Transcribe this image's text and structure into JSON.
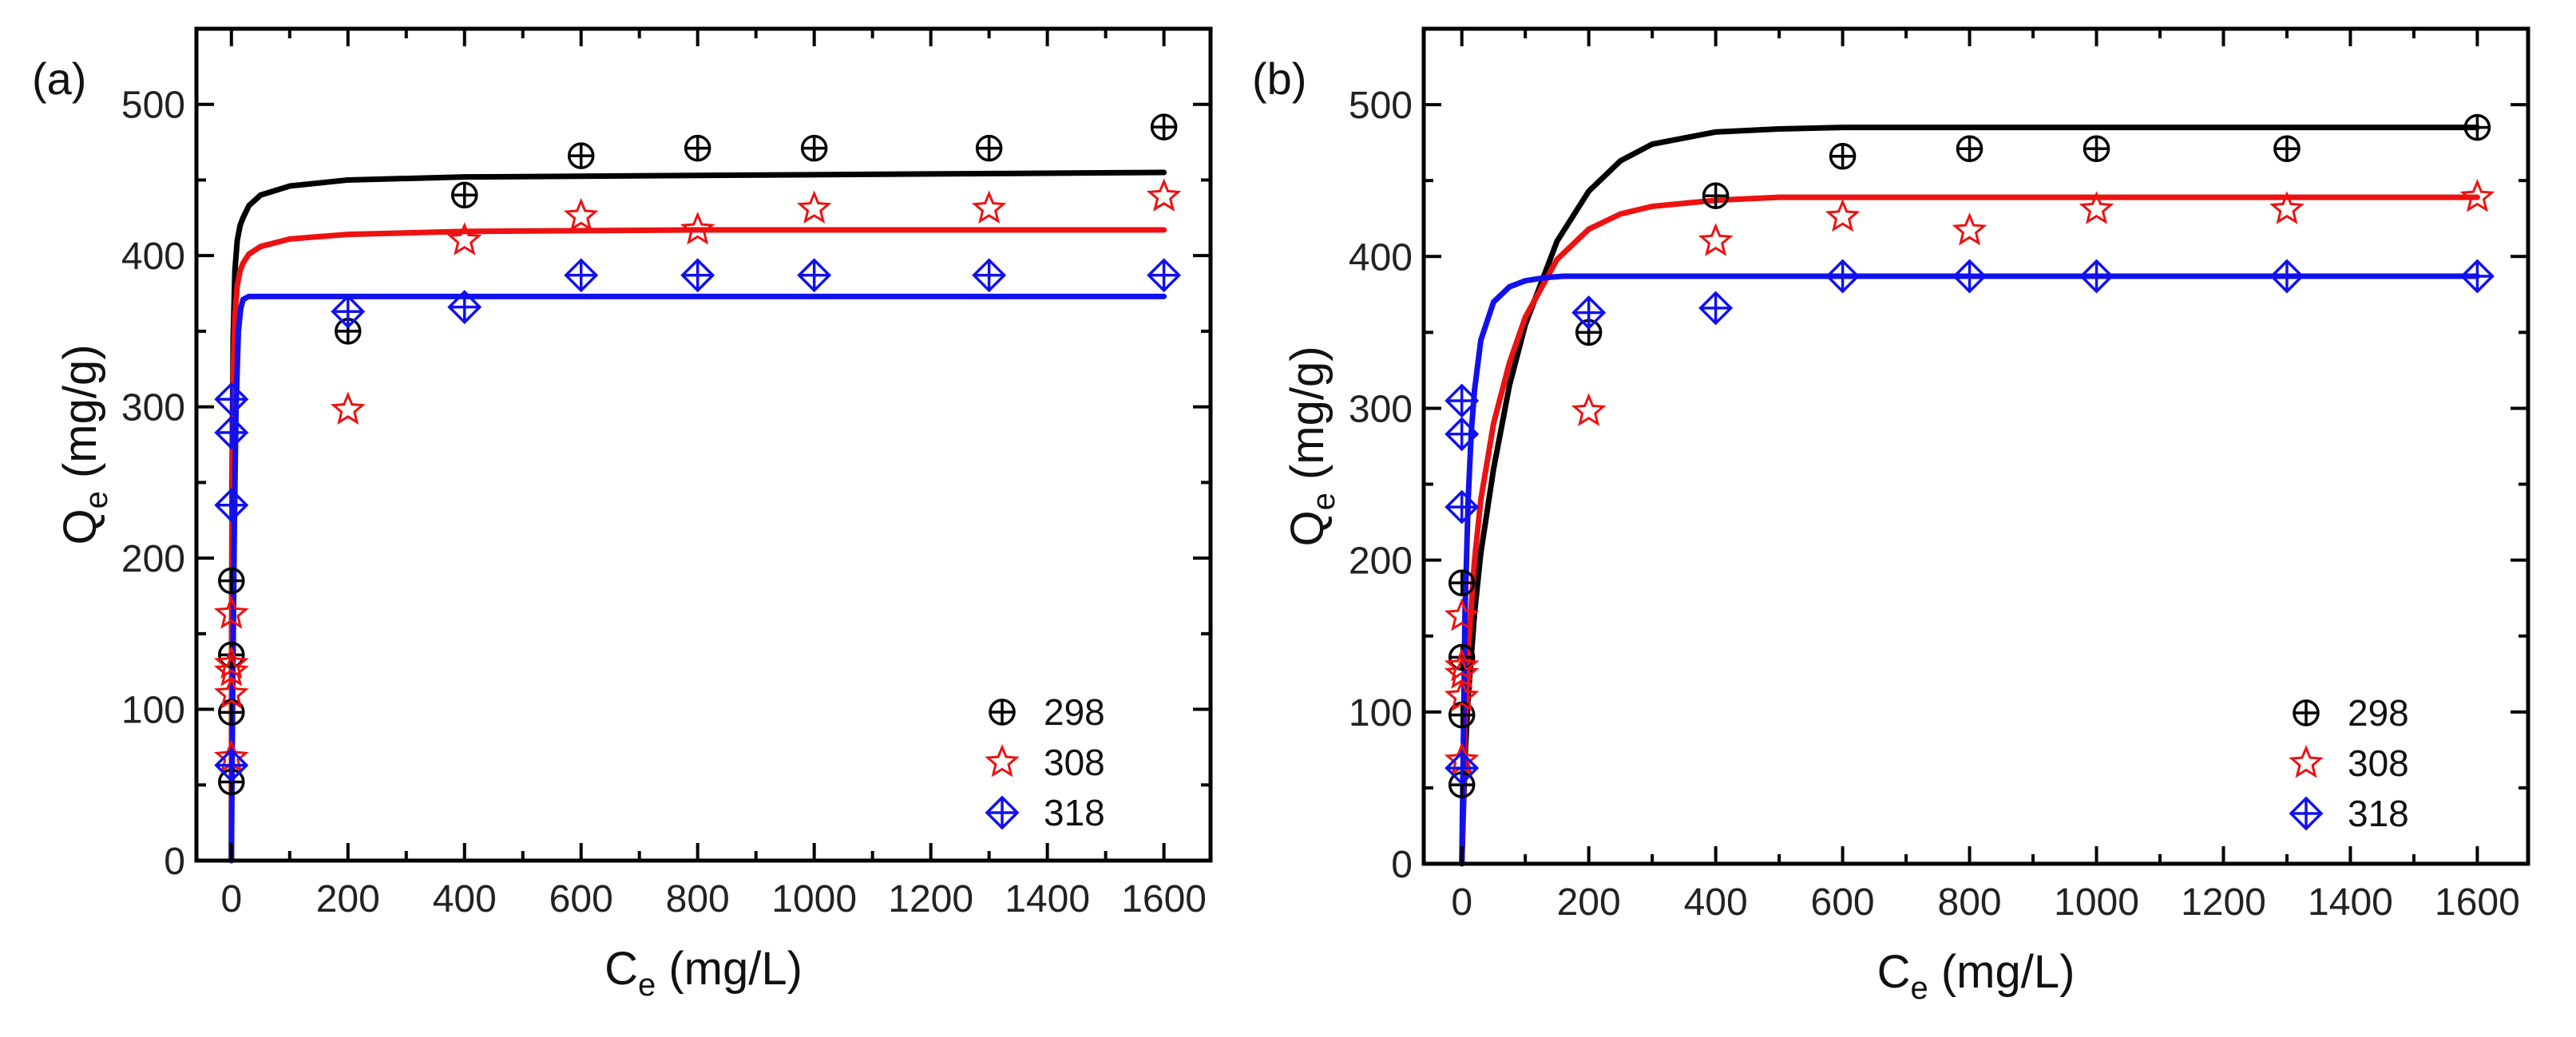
{
  "chart_data": [
    {
      "type": "scatter",
      "panel_label": "(a)",
      "xlabel": "C",
      "xlabel_sub": "e",
      "xlabel_unit": " (mg/L)",
      "ylabel": "Q",
      "ylabel_sub": "e",
      "ylabel_unit": " (mg/g)",
      "xlim": [
        -60,
        1680
      ],
      "ylim": [
        0,
        550
      ],
      "xticks": [
        0,
        200,
        400,
        600,
        800,
        1000,
        1200,
        1400,
        1600
      ],
      "yticks": [
        0,
        100,
        200,
        300,
        400,
        500
      ],
      "legend_position": "bottom-right",
      "series": [
        {
          "name": "298",
          "color": "#000000",
          "marker": "circle-plus",
          "x": [
            0,
            0,
            0,
            0,
            200,
            400,
            600,
            800,
            1000,
            1300,
            1600
          ],
          "y": [
            52,
            98,
            136,
            185,
            350,
            440,
            466,
            471,
            471,
            471,
            485
          ]
        },
        {
          "name": "308",
          "color": "#ee1111",
          "marker": "star",
          "x": [
            0,
            0,
            0,
            0,
            0,
            200,
            400,
            600,
            800,
            1000,
            1300,
            1600
          ],
          "y": [
            68,
            110,
            125,
            130,
            163,
            298,
            410,
            426,
            417,
            431,
            431,
            439
          ]
        },
        {
          "name": "318",
          "color": "#1111ee",
          "marker": "diamond-plus",
          "x": [
            0,
            0,
            0,
            0,
            200,
            400,
            600,
            800,
            1000,
            1300,
            1600
          ],
          "y": [
            63,
            235,
            283,
            305,
            363,
            366,
            387,
            387,
            387,
            387,
            387
          ]
        }
      ],
      "fits": [
        {
          "name": "298",
          "color": "#000000",
          "x": [
            0,
            1,
            3,
            6,
            10,
            15,
            20,
            30,
            50,
            100,
            200,
            400,
            800,
            1200,
            1600
          ],
          "y": [
            0,
            250,
            345,
            390,
            410,
            420,
            425,
            433,
            440,
            446,
            450,
            452,
            453,
            454,
            455
          ]
        },
        {
          "name": "308",
          "color": "#ee1111",
          "x": [
            0,
            1,
            3,
            6,
            10,
            15,
            20,
            30,
            50,
            100,
            200,
            400,
            800,
            1200,
            1600
          ],
          "y": [
            0,
            230,
            320,
            360,
            380,
            390,
            395,
            401,
            406,
            411,
            414,
            416,
            417,
            417,
            417
          ]
        },
        {
          "name": "318",
          "color": "#1111ee",
          "x": [
            0,
            2,
            5,
            8,
            12,
            16,
            20,
            30,
            50,
            100,
            400,
            800,
            1200,
            1600
          ],
          "y": [
            0,
            100,
            220,
            300,
            350,
            365,
            371,
            373,
            373,
            373,
            373,
            373,
            373,
            373
          ]
        }
      ]
    },
    {
      "type": "scatter",
      "panel_label": "(b)",
      "xlabel": "C",
      "xlabel_sub": "e",
      "xlabel_unit": " (mg/L)",
      "ylabel": "Q",
      "ylabel_sub": "e",
      "ylabel_unit": " (mg/g)",
      "xlim": [
        -60,
        1680
      ],
      "ylim": [
        0,
        550
      ],
      "xticks": [
        0,
        200,
        400,
        600,
        800,
        1000,
        1200,
        1400,
        1600
      ],
      "yticks": [
        0,
        100,
        200,
        300,
        400,
        500
      ],
      "legend_position": "bottom-right",
      "series": [
        {
          "name": "298",
          "color": "#000000",
          "marker": "circle-plus",
          "x": [
            0,
            0,
            0,
            0,
            200,
            400,
            600,
            800,
            1000,
            1300,
            1600
          ],
          "y": [
            52,
            98,
            136,
            185,
            350,
            440,
            466,
            471,
            471,
            471,
            485
          ]
        },
        {
          "name": "308",
          "color": "#ee1111",
          "marker": "star",
          "x": [
            0,
            0,
            0,
            0,
            0,
            200,
            400,
            600,
            800,
            1000,
            1300,
            1600
          ],
          "y": [
            68,
            110,
            125,
            130,
            163,
            298,
            410,
            426,
            417,
            431,
            431,
            439
          ]
        },
        {
          "name": "318",
          "color": "#1111ee",
          "marker": "diamond-plus",
          "x": [
            0,
            0,
            0,
            0,
            200,
            400,
            600,
            800,
            1000,
            1300,
            1600
          ],
          "y": [
            63,
            235,
            283,
            305,
            363,
            366,
            387,
            387,
            387,
            387,
            387
          ]
        }
      ],
      "fits": [
        {
          "name": "298",
          "color": "#000000",
          "x": [
            0,
            5,
            10,
            20,
            30,
            50,
            75,
            100,
            150,
            200,
            250,
            300,
            400,
            500,
            600,
            800,
            1000,
            1300,
            1600
          ],
          "y": [
            0,
            70,
            110,
            165,
            205,
            260,
            315,
            355,
            410,
            443,
            463,
            474,
            482,
            484,
            485,
            485,
            485,
            485,
            485
          ]
        },
        {
          "name": "308",
          "color": "#ee1111",
          "x": [
            0,
            5,
            10,
            20,
            30,
            50,
            75,
            100,
            150,
            200,
            250,
            300,
            400,
            500,
            600,
            800,
            1000,
            1300,
            1600
          ],
          "y": [
            0,
            90,
            140,
            200,
            240,
            290,
            330,
            360,
            398,
            418,
            428,
            433,
            437,
            439,
            439,
            439,
            439,
            439,
            439
          ]
        },
        {
          "name": "318",
          "color": "#1111ee",
          "x": [
            0,
            5,
            10,
            15,
            20,
            30,
            50,
            75,
            100,
            130,
            160,
            200,
            300,
            600,
            1000,
            1300,
            1600
          ],
          "y": [
            0,
            165,
            240,
            285,
            312,
            345,
            370,
            380,
            384,
            386,
            387,
            387,
            387,
            387,
            387,
            387,
            387
          ]
        }
      ]
    }
  ]
}
